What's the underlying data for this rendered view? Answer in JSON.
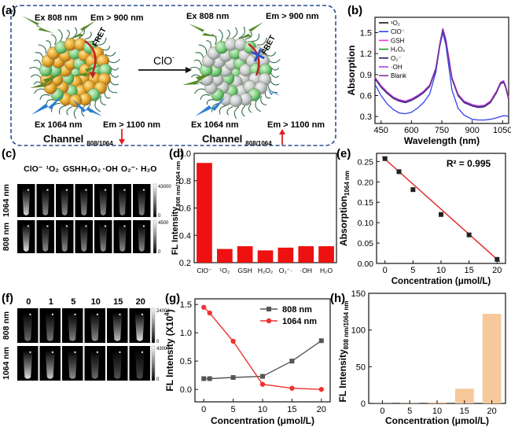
{
  "panels": {
    "a": {
      "letter": "(a)",
      "ex808_left": "Ex 808 nm",
      "em900_left": "Em > 900 nm",
      "ex1064_left": "Ex 1064 nm",
      "em1100_left": "Em > 1100 nm",
      "fret_left": "FRET",
      "arrow_label": "ClO",
      "arrow_label_sup": "-",
      "ex808_right": "Ex 808 nm",
      "em900_right": "Em > 900 nm",
      "ex1064_right": "Ex 1064 nm",
      "em1100_right": "Em > 1100 nm",
      "fret_right": "FRET",
      "channel_left": "Channel",
      "channel_left_sub": "808/1064",
      "channel_right": "Channel",
      "channel_right_sub": "808/1064",
      "colors": {
        "border": "#2a4d8f",
        "down_arrow": "#e0201a",
        "up_arrow": "#e0201a",
        "beam_green": "#5a8a2a",
        "beam_blue": "#2a7fd4"
      }
    },
    "c": {
      "letter": "(c)",
      "col_labels": [
        "ClO⁻",
        "¹O₂",
        "GSH",
        "H₂O₂",
        "·OH",
        "O₂⁻·",
        "H₂O"
      ],
      "row_labels": [
        "1064 nm",
        "808 nm"
      ],
      "scale_top": [
        "43000",
        "0"
      ],
      "scale_bottom": [
        "4500",
        "0"
      ]
    },
    "f": {
      "letter": "(f)",
      "col_labels": [
        "0",
        "1",
        "5",
        "10",
        "15",
        "20"
      ],
      "row_labels": [
        "808 nm",
        "1064 nm"
      ],
      "scale_top": [
        "24000",
        "0"
      ],
      "scale_bottom": [
        "43000",
        "0"
      ]
    }
  },
  "chart_data": [
    {
      "id": "b",
      "letter": "(b)",
      "type": "line",
      "xlabel": "Wavelength (nm)",
      "ylabel": "Absorption",
      "xlim": [
        420,
        1080
      ],
      "ylim": [
        0.2,
        1.72
      ],
      "xticks": [
        450,
        600,
        750,
        900,
        1050
      ],
      "yticks": [
        0.3,
        0.6,
        0.9,
        1.2,
        1.5
      ],
      "legend_position": "top-left",
      "series": [
        {
          "name": "¹O₂",
          "color": "#111111",
          "x": [
            420,
            450,
            480,
            510,
            540,
            570,
            600,
            630,
            660,
            690,
            720,
            740,
            755,
            770,
            800,
            830,
            860,
            900,
            930,
            960,
            990,
            1020,
            1040,
            1055,
            1065,
            1080
          ],
          "y": [
            0.84,
            0.72,
            0.63,
            0.56,
            0.52,
            0.5,
            0.53,
            0.58,
            0.64,
            0.73,
            0.97,
            1.32,
            1.53,
            1.38,
            0.84,
            0.6,
            0.5,
            0.45,
            0.43,
            0.44,
            0.5,
            0.64,
            0.77,
            0.79,
            0.72,
            0.55
          ]
        },
        {
          "name": "ClO⁻",
          "color": "#3344ee",
          "x": [
            420,
            450,
            480,
            510,
            540,
            570,
            600,
            630,
            660,
            690,
            720,
            740,
            755,
            770,
            800,
            830,
            860,
            900,
            930,
            960,
            990,
            1020,
            1040,
            1055,
            1065,
            1080
          ],
          "y": [
            0.76,
            0.6,
            0.48,
            0.4,
            0.35,
            0.34,
            0.36,
            0.42,
            0.5,
            0.62,
            0.93,
            1.3,
            1.5,
            1.32,
            0.68,
            0.42,
            0.32,
            0.26,
            0.25,
            0.25,
            0.26,
            0.28,
            0.3,
            0.31,
            0.31,
            0.3
          ]
        },
        {
          "name": "GSH",
          "color": "#ee33dd",
          "x": [
            420,
            450,
            480,
            510,
            540,
            570,
            600,
            630,
            660,
            690,
            720,
            740,
            755,
            770,
            800,
            830,
            860,
            900,
            930,
            960,
            990,
            1020,
            1040,
            1055,
            1065,
            1080
          ],
          "y": [
            0.86,
            0.74,
            0.65,
            0.58,
            0.54,
            0.52,
            0.55,
            0.6,
            0.66,
            0.75,
            0.99,
            1.34,
            1.56,
            1.4,
            0.86,
            0.62,
            0.52,
            0.47,
            0.45,
            0.46,
            0.52,
            0.66,
            0.79,
            0.81,
            0.74,
            0.57
          ]
        },
        {
          "name": "H₂O₂",
          "color": "#229922",
          "x": [
            420,
            450,
            480,
            510,
            540,
            570,
            600,
            630,
            660,
            690,
            720,
            740,
            755,
            770,
            800,
            830,
            860,
            900,
            930,
            960,
            990,
            1020,
            1040,
            1055,
            1065,
            1080
          ],
          "y": [
            0.85,
            0.73,
            0.64,
            0.57,
            0.53,
            0.51,
            0.54,
            0.59,
            0.65,
            0.74,
            0.98,
            1.33,
            1.55,
            1.39,
            0.85,
            0.61,
            0.51,
            0.46,
            0.44,
            0.45,
            0.51,
            0.65,
            0.78,
            0.8,
            0.73,
            0.56
          ]
        },
        {
          "name": "O₂⁻",
          "color": "#1a1a7a",
          "x": [
            420,
            450,
            480,
            510,
            540,
            570,
            600,
            630,
            660,
            690,
            720,
            740,
            755,
            770,
            800,
            830,
            860,
            900,
            930,
            960,
            990,
            1020,
            1040,
            1055,
            1065,
            1080
          ],
          "y": [
            0.84,
            0.72,
            0.63,
            0.56,
            0.52,
            0.5,
            0.53,
            0.58,
            0.64,
            0.73,
            0.97,
            1.32,
            1.54,
            1.38,
            0.84,
            0.6,
            0.5,
            0.45,
            0.43,
            0.44,
            0.5,
            0.64,
            0.77,
            0.79,
            0.72,
            0.55
          ]
        },
        {
          "name": "·OH",
          "color": "#aa44ee",
          "x": [
            420,
            450,
            480,
            510,
            540,
            570,
            600,
            630,
            660,
            690,
            720,
            740,
            755,
            770,
            800,
            830,
            860,
            900,
            930,
            960,
            990,
            1020,
            1040,
            1055,
            1065,
            1080
          ],
          "y": [
            0.86,
            0.74,
            0.65,
            0.58,
            0.54,
            0.52,
            0.55,
            0.6,
            0.66,
            0.75,
            0.99,
            1.34,
            1.56,
            1.4,
            0.86,
            0.62,
            0.52,
            0.47,
            0.45,
            0.46,
            0.52,
            0.66,
            0.79,
            0.81,
            0.74,
            0.57
          ]
        },
        {
          "name": "Blank",
          "color": "#883399",
          "x": [
            420,
            450,
            480,
            510,
            540,
            570,
            600,
            630,
            660,
            690,
            720,
            740,
            755,
            770,
            800,
            830,
            860,
            900,
            930,
            960,
            990,
            1020,
            1040,
            1055,
            1065,
            1080
          ],
          "y": [
            0.85,
            0.73,
            0.64,
            0.57,
            0.53,
            0.51,
            0.54,
            0.59,
            0.65,
            0.74,
            0.98,
            1.33,
            1.55,
            1.39,
            0.85,
            0.61,
            0.51,
            0.46,
            0.44,
            0.45,
            0.51,
            0.65,
            0.78,
            0.8,
            0.73,
            0.56
          ]
        }
      ]
    },
    {
      "id": "d",
      "letter": "(d)",
      "type": "bar",
      "ylabel_main": "FL Intensity",
      "ylabel_sub": "808 nm/1064 nm",
      "ylim": [
        0.2,
        1.0
      ],
      "yticks": [
        0.2,
        0.4,
        0.6,
        0.8,
        1.0
      ],
      "categories": [
        "ClO⁻",
        "¹O₂",
        "GSH",
        "H₂O₂",
        "O₂⁻·",
        "·OH",
        "H₂O"
      ],
      "values": [
        0.93,
        0.3,
        0.32,
        0.29,
        0.31,
        0.32,
        0.32
      ],
      "color": "#ee1111"
    },
    {
      "id": "e",
      "letter": "(e)",
      "type": "scatter",
      "xlabel": "Concentration (μmol/L)",
      "ylabel_main": "Absorption",
      "ylabel_sub": "1064 nm",
      "xlim": [
        -1.5,
        21.5
      ],
      "ylim": [
        0.0,
        0.27
      ],
      "xticks": [
        0,
        5,
        10,
        15,
        20
      ],
      "yticks": [
        0.0,
        0.05,
        0.1,
        0.15,
        0.2,
        0.25
      ],
      "annotation": "R² = 0.995",
      "x": [
        0,
        2.5,
        5,
        10,
        15,
        20
      ],
      "y": [
        0.257,
        0.225,
        0.181,
        0.12,
        0.07,
        0.01
      ],
      "fit": {
        "x": [
          -0.5,
          20.5
        ],
        "y": [
          0.262,
          0.004
        ]
      },
      "point_color": "#222222",
      "line_color": "#dd2222"
    },
    {
      "id": "g",
      "letter": "(g)",
      "type": "line",
      "xlabel": "Concentration (μmol/L)",
      "ylabel_main": "FL Intensity (X10",
      "ylabel_sup": "4",
      "ylabel_end": ")",
      "xlim": [
        -1.5,
        21.5
      ],
      "ylim": [
        -0.22,
        1.6
      ],
      "xticks": [
        0,
        5,
        10,
        15,
        20
      ],
      "yticks": [
        0.0,
        0.5,
        1.0,
        1.5
      ],
      "legend_position": "top-right",
      "series": [
        {
          "name": "808 nm",
          "color": "#555555",
          "marker": "square",
          "x": [
            0,
            1,
            5,
            10,
            15,
            20
          ],
          "y": [
            0.19,
            0.19,
            0.21,
            0.23,
            0.5,
            0.86
          ]
        },
        {
          "name": "1064 nm",
          "color": "#ee3333",
          "marker": "circle",
          "x": [
            0,
            1,
            5,
            10,
            15,
            20
          ],
          "y": [
            1.45,
            1.35,
            0.85,
            0.09,
            0.02,
            0.0
          ]
        }
      ]
    },
    {
      "id": "h",
      "letter": "(h)",
      "type": "bar",
      "xlabel": "Concentration (μmol/L)",
      "ylabel_main": "FL Intensity",
      "ylabel_sub": "808 nm/1064 nm",
      "ylim": [
        0,
        150
      ],
      "yticks": [
        0,
        50,
        100,
        150
      ],
      "categories": [
        "0",
        "5",
        "10",
        "15",
        "20"
      ],
      "values": [
        0.2,
        0.3,
        1.5,
        20,
        122
      ],
      "color": "#f7c89b"
    }
  ]
}
